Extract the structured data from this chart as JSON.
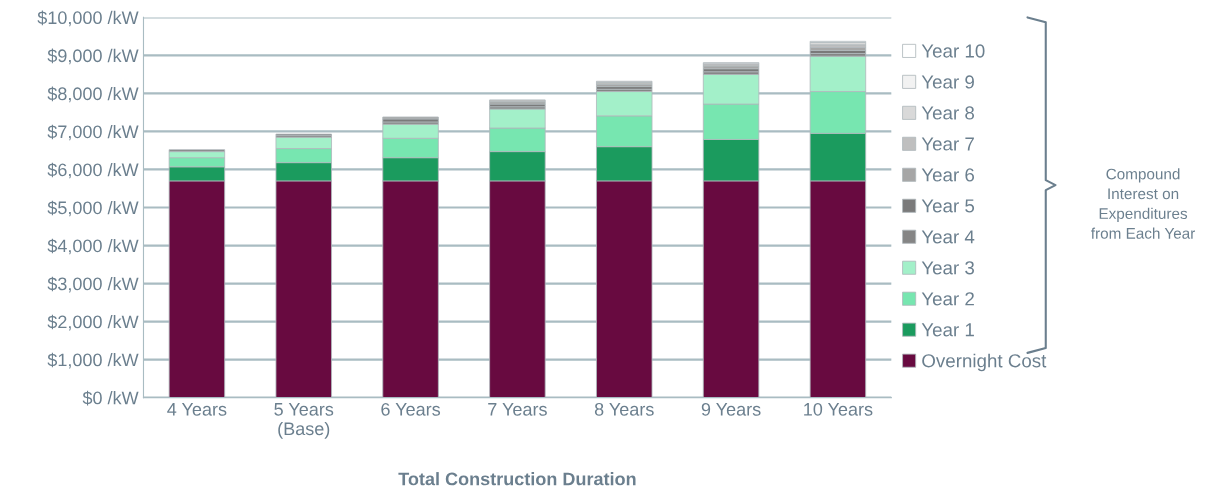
{
  "chart_data": {
    "type": "bar",
    "stacked": true,
    "xlabel": "Total Construction Duration",
    "categories": [
      "4 Years",
      "5 Years\n(Base)",
      "6 Years",
      "7 Years",
      "8 Years",
      "9 Years",
      "10 Years"
    ],
    "series": [
      {
        "name": "Overnight Cost",
        "color": "#680a40",
        "values": [
          5700,
          5700,
          5700,
          5700,
          5700,
          5700,
          5700
        ]
      },
      {
        "name": "Year 1",
        "color": "#1b9b5e",
        "values": [
          370,
          480,
          610,
          770,
          900,
          1090,
          1250
        ]
      },
      {
        "name": "Year 2",
        "color": "#77e6b0",
        "values": [
          240,
          370,
          510,
          620,
          810,
          930,
          1100
        ]
      },
      {
        "name": "Year 3",
        "color": "#a3f0c9",
        "values": [
          160,
          300,
          370,
          500,
          640,
          780,
          930
        ]
      },
      {
        "name": "Year 4",
        "color": "#858585",
        "values": [
          50,
          50,
          60,
          60,
          60,
          70,
          70
        ]
      },
      {
        "name": "Year 5",
        "color": "#7a7a7a",
        "values": [
          null,
          30,
          80,
          70,
          70,
          80,
          80
        ]
      },
      {
        "name": "Year 6",
        "color": "#a6a6a6",
        "values": [
          null,
          null,
          50,
          60,
          60,
          70,
          80
        ]
      },
      {
        "name": "Year 7",
        "color": "#bfbfbf",
        "values": [
          null,
          null,
          null,
          50,
          50,
          60,
          70
        ]
      },
      {
        "name": "Year 8",
        "color": "#d9d9d9",
        "values": [
          null,
          null,
          null,
          null,
          30,
          null,
          60
        ]
      },
      {
        "name": "Year 9",
        "color": "#f2f2f2",
        "values": [
          null,
          null,
          null,
          null,
          null,
          30,
          null
        ]
      },
      {
        "name": "Year 10",
        "color": "#ffffff",
        "values": [
          null,
          null,
          null,
          null,
          null,
          null,
          30
        ]
      }
    ],
    "ylim": [
      0,
      10000
    ],
    "yticks": [
      {
        "value": 0,
        "label": "$0 /kW"
      },
      {
        "value": 1000,
        "label": "$1,000 /kW"
      },
      {
        "value": 2000,
        "label": "$2,000 /kW"
      },
      {
        "value": 3000,
        "label": "$3,000 /kW"
      },
      {
        "value": 4000,
        "label": "$4,000 /kW"
      },
      {
        "value": 5000,
        "label": "$5,000 /kW"
      },
      {
        "value": 6000,
        "label": "$6,000 /kW"
      },
      {
        "value": 7000,
        "label": "$7,000 /kW"
      },
      {
        "value": 8000,
        "label": "$8,000 /kW"
      },
      {
        "value": 9000,
        "label": "$9,000 /kW"
      },
      {
        "value": 10000,
        "label": "$10,000 /kW"
      }
    ],
    "grid": "y",
    "legend": "right",
    "annotations": [
      "Compound\nInterest on\nExpenditures\nfrom Each Year"
    ]
  }
}
